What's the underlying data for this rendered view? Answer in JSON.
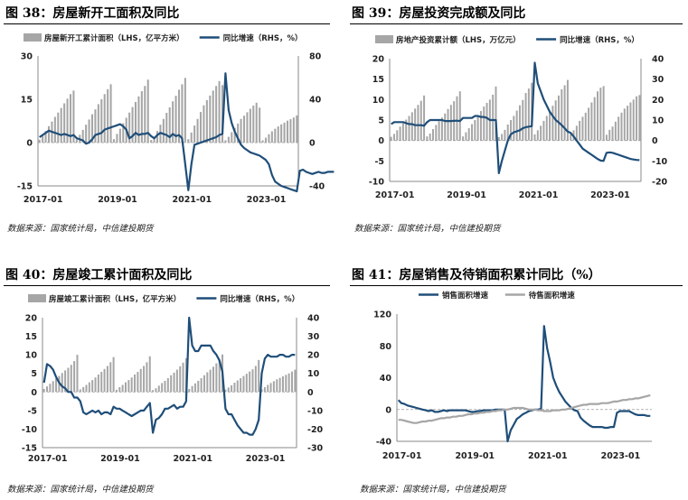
{
  "panels": {
    "p38": {
      "title": "图 38：房屋新开工面积及同比",
      "source": "数据来源：国家统计局，中信建投期货"
    },
    "p39": {
      "title": "图 39：房屋投资完成额及同比",
      "source": "数据来源：国家统计局，中信建投期货"
    },
    "p40": {
      "title": "图 40：房屋竣工累计面积及同比",
      "source": "数据来源：国家统计局，中信建投期货"
    },
    "p41": {
      "title": "图 41：房屋销售及待销面积累计同比（%）",
      "source": "数据来源：国家统计局，中信建投期货"
    }
  },
  "colors": {
    "bar": "#a6a6a6",
    "line": "#1f4e79",
    "grey_line": "#a6a6a6",
    "axis": "#888888"
  },
  "chart_data": [
    {
      "id": "p38",
      "type": "bar+line",
      "title": "",
      "x_ticks": [
        "2017-01",
        "2019-01",
        "2021-01",
        "2023-01"
      ],
      "left_ticks": [
        "30",
        "15",
        "0",
        "-15"
      ],
      "left_ylim": [
        -15,
        30
      ],
      "right_ticks": [
        "80",
        "40",
        "0",
        "-40"
      ],
      "right_ylim": [
        -40,
        80
      ],
      "grid": false,
      "legend": "top",
      "series": [
        {
          "name": "房屋新开工累计面积（LHS，亿平方米）",
          "kind": "bar",
          "axis": "left",
          "values": [
            1,
            2.5,
            4,
            5.7,
            7.3,
            8.9,
            10.4,
            12,
            13.6,
            15.2,
            16.8,
            18,
            1.1,
            2.7,
            4.4,
            6.2,
            8,
            9.8,
            11.5,
            13.3,
            15,
            16.8,
            18.5,
            20.2,
            1.2,
            3,
            4.8,
            6.7,
            8.6,
            10.4,
            12.3,
            14.1,
            16,
            17.8,
            19.6,
            21.8,
            0.9,
            1.8,
            4,
            6.2,
            8.2,
            10.3,
            12.2,
            14.3,
            16.2,
            18.3,
            20.2,
            22.4,
            1.2,
            3.5,
            5.9,
            8.2,
            10.6,
            12.9,
            14.7,
            16.3,
            18,
            19.6,
            21.3,
            19.9,
            0.8,
            2,
            3.6,
            5.1,
            6.6,
            8.2,
            9.3,
            10.5,
            11.7,
            12.8,
            13.8,
            12.1,
            0.8,
            1.7,
            2.9,
            3.9,
            4.8,
            5.6,
            6.3,
            6.9,
            7.6,
            8.1,
            8.7,
            9.4
          ]
        },
        {
          "name": "同比增速（RHS，%）",
          "kind": "line",
          "axis": "right",
          "values": [
            5,
            7,
            9,
            11,
            10,
            9,
            8,
            7,
            8,
            7,
            6,
            7,
            4,
            3,
            2,
            -1,
            0,
            3,
            7,
            8,
            9,
            12,
            13,
            14,
            15,
            16,
            17,
            15,
            12,
            4,
            6,
            9,
            7,
            8,
            8,
            9,
            6,
            4,
            7,
            9,
            8,
            7,
            5,
            8,
            6,
            7,
            4,
            -20,
            -44,
            -20,
            -2,
            -1,
            0,
            1,
            2,
            3,
            4,
            5,
            7,
            8,
            64,
            30,
            18,
            10,
            4,
            -2,
            -5,
            -7,
            -9,
            -10,
            -11,
            -12,
            -14,
            -16,
            -20,
            -30,
            -36,
            -38,
            -40,
            -41,
            -42,
            -43,
            -44,
            -45,
            -26,
            -25,
            -27,
            -28,
            -29,
            -28,
            -27,
            -28,
            -28,
            -27,
            -27,
            -27
          ]
        }
      ]
    },
    {
      "id": "p39",
      "type": "bar+line",
      "title": "",
      "x_ticks": [
        "2017-01",
        "2019-01",
        "2021-01",
        "2023-01"
      ],
      "left_ticks": [
        "20",
        "15",
        "10",
        "5",
        "0",
        "-5",
        "-10"
      ],
      "left_ylim": [
        -10,
        20
      ],
      "right_ticks": [
        "40",
        "30",
        "20",
        "10",
        "0",
        "-10",
        "-20"
      ],
      "right_ylim": [
        -20,
        40
      ],
      "grid": false,
      "legend": "top",
      "series": [
        {
          "name": "房地产投资累计额（LHS，万亿元）",
          "kind": "bar",
          "axis": "left",
          "values": [
            0.9,
            1.6,
            2.5,
            3.4,
            4.2,
            5.1,
            6,
            6.9,
            7.8,
            8.7,
            9.7,
            11,
            1,
            1.7,
            2.8,
            3.8,
            4.7,
            5.6,
            6.6,
            7.7,
            8.7,
            9.6,
            10.8,
            12.02,
            1,
            2,
            3,
            4,
            5,
            6,
            7.2,
            8.3,
            9.2,
            10,
            11.2,
            13.2,
            0.8,
            1.6,
            2.6,
            3.9,
            5,
            6,
            7.3,
            8.6,
            9.9,
            11.6,
            12.7,
            14.1,
            1.5,
            2.5,
            3.6,
            4.8,
            6,
            7.2,
            8.5,
            9.8,
            11,
            12.5,
            13.5,
            14.8,
            1.5,
            2.5,
            3.6,
            4.8,
            5.8,
            6.8,
            8,
            9.3,
            10.6,
            12,
            12.9,
            13.3,
            1.4,
            2.6,
            3.4,
            4.6,
            5.8,
            6.8,
            7.8,
            8.5,
            9.3,
            10,
            10.8,
            11.1
          ]
        },
        {
          "name": "同比增速（RHS，%）",
          "kind": "line",
          "axis": "right",
          "values": [
            8,
            9,
            9,
            9,
            9,
            8.5,
            8,
            8,
            7.5,
            7.5,
            7.5,
            7.2,
            9,
            10,
            10,
            10,
            10,
            10,
            9.5,
            9.5,
            9.5,
            9.6,
            9.7,
            9.5,
            11,
            11,
            11,
            11,
            12,
            12,
            11.5,
            11.5,
            11,
            10,
            10,
            10,
            -16,
            -10,
            -5,
            0,
            3,
            4,
            4.5,
            5,
            6,
            6.5,
            6.8,
            7,
            38,
            28,
            24,
            20,
            17,
            14,
            12,
            10,
            8.8,
            7.5,
            6,
            4.4,
            3.7,
            2,
            0,
            -2,
            -4,
            -5,
            -6,
            -7,
            -8,
            -9,
            -9.8,
            -10,
            -6,
            -5.8,
            -6,
            -6.5,
            -7,
            -7.5,
            -8,
            -8.5,
            -9,
            -9.3,
            -9.5,
            -9.6
          ]
        }
      ]
    },
    {
      "id": "p40",
      "type": "bar+line",
      "title": "",
      "x_ticks": [
        "2017-01",
        "2019-01",
        "2021-01",
        "2023-01"
      ],
      "left_ticks": [
        "20",
        "15",
        "10",
        "5",
        "0",
        "-5",
        "-10",
        "-15"
      ],
      "left_ylim": [
        -15,
        20
      ],
      "right_ticks": [
        "40",
        "30",
        "20",
        "10",
        "0",
        "-10",
        "-20",
        "-30"
      ],
      "right_ylim": [
        -30,
        40
      ],
      "grid": false,
      "legend": "top",
      "series": [
        {
          "name": "房屋竣工累计面积（LHS，亿平方米）",
          "kind": "bar",
          "axis": "left",
          "values": [
            0.8,
            1.5,
            2.2,
            2.9,
            3.6,
            4.3,
            5.1,
            5.8,
            6.5,
            7.3,
            8.3,
            10,
            0.7,
            1.3,
            1.9,
            2.6,
            3.2,
            3.9,
            4.7,
            5.4,
            6.2,
            7,
            8,
            9.4,
            0.6,
            1.3,
            1.9,
            2.6,
            3.2,
            3.9,
            4.7,
            5.4,
            6.2,
            7,
            8,
            9.6,
            0.5,
            1,
            1.7,
            2.4,
            3,
            3.7,
            4.5,
            5.2,
            6,
            6.9,
            7.9,
            9.1,
            0.8,
            1.6,
            2.3,
            3,
            3.7,
            4.5,
            5.3,
            6,
            6.8,
            7.7,
            8.8,
            10.1,
            0.6,
            1.2,
            1.8,
            2.5,
            3.1,
            3.7,
            4.3,
            4.9,
            5.5,
            6.1,
            7,
            8.6,
            0.7,
            1.3,
            1.9,
            2.4,
            2.9,
            3.4,
            3.8,
            4.2,
            4.6,
            5,
            5.5,
            6
          ]
        },
        {
          "name": "同比增速（RHS，%）",
          "kind": "line",
          "axis": "right",
          "values": [
            5,
            15,
            14,
            12,
            8,
            5,
            3,
            2,
            0,
            0,
            -3,
            -3,
            -5,
            -11,
            -12,
            -11,
            -10,
            -11,
            -10,
            -12,
            -11,
            -11,
            -12,
            -8,
            -9,
            -9,
            -10,
            -11,
            -12,
            -13,
            -12,
            -11,
            -10,
            -10,
            -8,
            -6,
            -22,
            -15,
            -14,
            -12,
            -9,
            -9,
            -8,
            -7,
            -9,
            -8,
            -8,
            -5,
            40,
            25,
            22,
            22,
            25,
            25,
            25,
            25,
            22,
            20,
            17,
            11,
            -9,
            -12,
            -12,
            -15,
            -18,
            -20,
            -22,
            -22,
            -23,
            -23,
            -20,
            -15,
            10,
            18,
            20,
            19,
            19,
            19,
            20,
            20,
            19,
            19,
            20,
            20
          ]
        }
      ]
    },
    {
      "id": "p41",
      "type": "line",
      "title": "",
      "x_ticks": [
        "2017-01",
        "2019-01",
        "2021-01",
        "2023-01"
      ],
      "left_ticks": [
        "120",
        "80",
        "40",
        "0",
        "-40"
      ],
      "left_ylim": [
        -40,
        120
      ],
      "grid": false,
      "legend": "top",
      "series": [
        {
          "name": "销售面积增速",
          "kind": "line",
          "axis": "left",
          "values": [
            12,
            8,
            7,
            5,
            4,
            3,
            2,
            1,
            0,
            -1,
            -2,
            -1,
            -3,
            -3,
            -2,
            -1,
            -2,
            -1,
            -1,
            -1,
            -1,
            -1,
            -1,
            -2,
            -3,
            -3,
            -2,
            -2,
            -1,
            -1,
            -1,
            -1,
            0,
            0,
            0,
            0,
            -40,
            -26,
            -19,
            -12,
            -9,
            -6,
            -4,
            -2,
            -1,
            0,
            0,
            1,
            105,
            77,
            60,
            40,
            30,
            22,
            16,
            10,
            6,
            2,
            -1,
            -2,
            -10,
            -14,
            -17,
            -20,
            -22,
            -22,
            -22,
            -22,
            -23,
            -23,
            -22,
            -22,
            -4,
            -2,
            -2,
            -2,
            -2,
            -4,
            -6,
            -7,
            -7,
            -7,
            -8,
            -8
          ]
        },
        {
          "name": "待售面积增速",
          "kind": "line",
          "axis": "left",
          "values": [
            -13,
            -13,
            -14,
            -15,
            -16,
            -17,
            -17,
            -16,
            -15,
            -15,
            -14,
            -14,
            -13,
            -12,
            -11,
            -11,
            -10,
            -10,
            -9,
            -9,
            -8,
            -8,
            -7,
            -6,
            -6,
            -5,
            -5,
            -4,
            -4,
            -3,
            -3,
            -2,
            -2,
            -1,
            -1,
            0,
            0,
            1,
            2,
            2,
            2,
            2,
            1,
            0,
            0,
            0,
            -1,
            -1,
            -2,
            -2,
            -2,
            -1,
            -1,
            -1,
            0,
            0,
            1,
            2,
            3,
            4,
            5,
            6,
            6,
            7,
            7,
            7,
            7,
            8,
            8,
            8,
            9,
            10,
            10,
            11,
            12,
            12,
            13,
            13,
            14,
            14,
            15,
            16,
            17,
            18
          ]
        }
      ]
    }
  ]
}
